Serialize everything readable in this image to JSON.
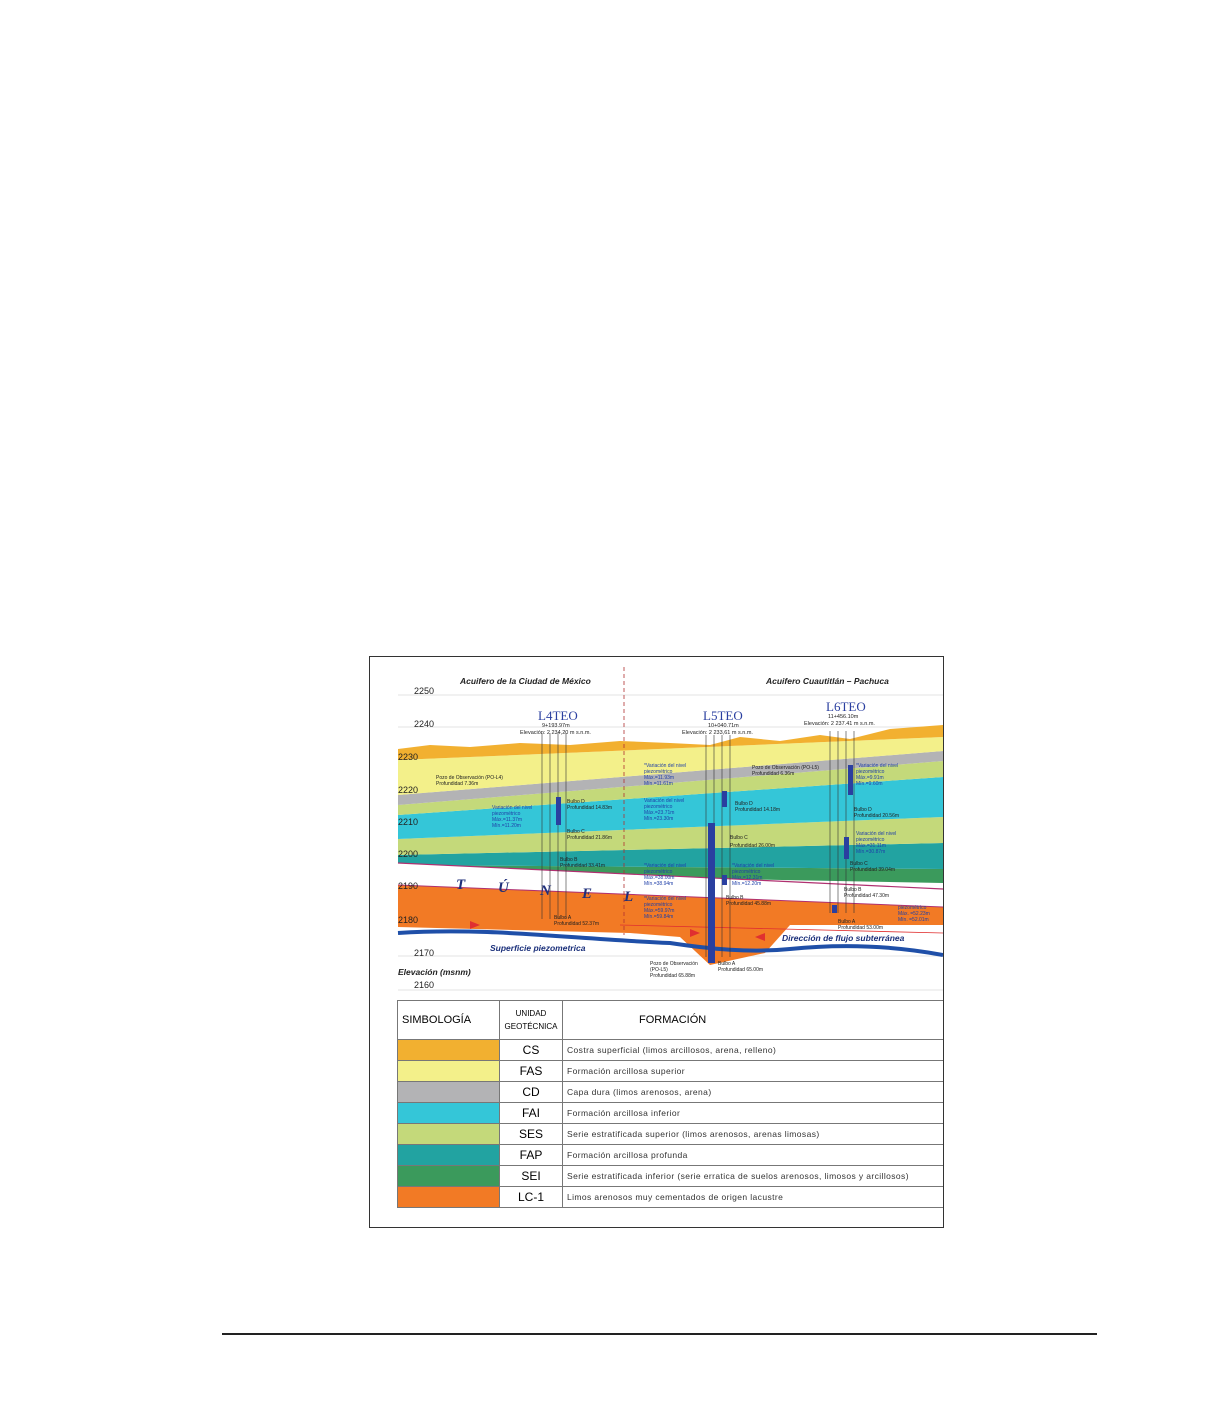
{
  "header": {
    "aquifer_left": "Acuifero de la Ciudad de México",
    "aquifer_right": "Acuifero Cuautitlán – Pachuca"
  },
  "elevation_axis": {
    "title": "Elevación (msnm)",
    "ticks": [
      "2250",
      "2240",
      "2230",
      "2220",
      "2210",
      "2200",
      "2190",
      "2180",
      "2170",
      "2160"
    ]
  },
  "wells": [
    {
      "name": "L4TEO",
      "chainage": "9+193.97m",
      "elevation": "Elevación: 2 234,20 m s.n.m."
    },
    {
      "name": "L5TEO",
      "chainage": "10+040.71m",
      "elevation": "Elevación: 2 233,61 m s.n.m."
    },
    {
      "name": "L6TEO",
      "chainage": "11+456.10m",
      "elevation": "Elevación: 2 237.41 m s.n.m."
    }
  ],
  "tunnel_label": [
    "T",
    "Ú",
    "N",
    "E",
    "L"
  ],
  "flow_labels": {
    "piezometric_surface": "Superficie piezometrica",
    "flow_direction": "Dirección de flujo subterránea"
  },
  "annotations": {
    "l4_pozo": [
      "Pozo de Observación (PO-L4)",
      "Profundidad 7.36m"
    ],
    "l4_var": [
      "Variación del nivel",
      "piezométrico",
      "Máx.=11.37m",
      "Mín.=11.20m"
    ],
    "l4_bulbo_d": [
      "Bulbo D",
      "Profundidad 14.83m"
    ],
    "l4_bulbo_c": [
      "Bulbo C",
      "Profundidad 21.86m"
    ],
    "l4_bulbo_b": [
      "Bulbo B",
      "Profundidad 33.41m"
    ],
    "l4_bulbo_a": [
      "Bulbo A",
      "Profundidad 52.37m"
    ],
    "l5_var1": [
      "*Variación del nivel",
      "piezométrico",
      "Máx.=11.93m",
      "Mín.=11.61m"
    ],
    "l5_var2": [
      "Variación del nivel",
      "piezométrico",
      "Máx.=23.71m",
      "Mín.=23.30m"
    ],
    "l5_var3": [
      "*Variación del nivel",
      "piezométrico",
      "Máx.=38.00m",
      "Mín.=38.94m"
    ],
    "l5_var4": [
      "*Variación del nivel",
      "piezométrico",
      "Máx.=59.97m",
      "Mín.=59.84m"
    ],
    "l5_pozo_bottom": [
      "Pozo de Observación",
      "(PO-L5)",
      "Profundidad 65.88m"
    ],
    "l5_bulbo_a": [
      "Bulbo A",
      "Profundidad 65.00m"
    ],
    "l5_pozo_top": [
      "Pozo de Observación (PO-L5)",
      "Profundidad 6.36m"
    ],
    "l5_bulbo_d": [
      "Bulbo D",
      "Profundidad 14.18m"
    ],
    "l5_bulbo_c": [
      "Bulbo C",
      "Profundidad 26.00m"
    ],
    "l5_var5": [
      "*Variación del nivel",
      "piezométrico",
      "Máx.=12.31m",
      "Mín.=12.20m"
    ],
    "l5_bulbo_b": [
      "Bulbo B",
      "Profundidad 45.88m"
    ],
    "l6_var1": [
      "*Variación del nivel",
      "piezométrico",
      "Máx.=9.91m",
      "Mín.=9.60m"
    ],
    "l6_bulbo_d": [
      "Bulbo D",
      "Profundidad 20.56m"
    ],
    "l6_var2": [
      "Variación del nivel",
      "piezométrico",
      "Máx.=31.11m",
      "Mín.=30.87m"
    ],
    "l6_bulbo_c": [
      "Bulbo C",
      "Profundidad 39.04m"
    ],
    "l6_bulbo_b": [
      "Bulbo B",
      "Profundidad 47.30m"
    ],
    "l6_bulbo_a": [
      "Bulbo A",
      "Profundidad 53.00m"
    ],
    "l6_var3": [
      "piezométrico",
      "Máx. =52.23m",
      "Mín. =52.01m"
    ]
  },
  "legend": {
    "col_symbol": "SIMBOLOGÍA",
    "col_unit_line1": "UNIDAD",
    "col_unit_line2": "GEOTÉCNICA",
    "col_formation": "FORMACIÓN",
    "rows": [
      {
        "code": "CS",
        "color": "#f2b030",
        "description": "Costra superficial (limos arcillosos, arena, relleno)"
      },
      {
        "code": "FAS",
        "color": "#f3f08a",
        "description": "Formación arcillosa superior"
      },
      {
        "code": "CD",
        "color": "#b3b3b5",
        "description": "Capa dura (limos arenosos, arena)"
      },
      {
        "code": "FAI",
        "color": "#34c6d8",
        "description": "Formación arcillosa inferior"
      },
      {
        "code": "SES",
        "color": "#c4d97a",
        "description": "Serie estratificada superior (limos arenosos, arenas limosas)"
      },
      {
        "code": "FAP",
        "color": "#22a3a1",
        "description": "Formación arcillosa profunda"
      },
      {
        "code": "SEI",
        "color": "#3b9a5c",
        "description": "Serie estratificada inferior (serie erratica de suelos arenosos, limosos y arcillosos)"
      },
      {
        "code": "LC-1",
        "color": "#f27a25",
        "description": "Limos arenosos muy cementados de origen lacustre"
      }
    ]
  }
}
